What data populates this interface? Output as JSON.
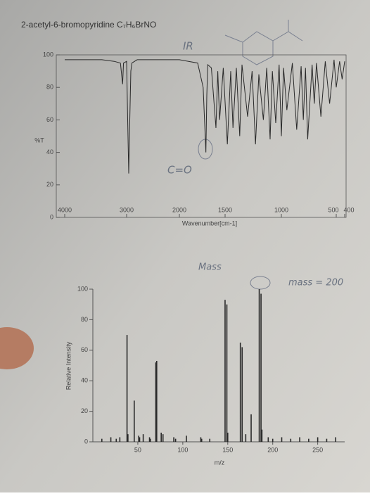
{
  "chart_data": [
    {
      "type": "line",
      "title": "2-acetyl-6-bromopyridine C₇H₆BrNO",
      "annotations": [
        "IR",
        "C=O"
      ],
      "x_label": "Wavenumber[cm-1]",
      "y_label": "%T",
      "xlim": [
        4000,
        400
      ],
      "ylim": [
        0,
        100
      ],
      "xticks": [
        4000,
        3000,
        2000,
        1500,
        1000,
        500,
        400
      ],
      "yticks": [
        0,
        20,
        40,
        60,
        80,
        100
      ],
      "color": "#2a2a2a",
      "x": [
        4000,
        3800,
        3600,
        3400,
        3200,
        3100,
        3065,
        3050,
        3000,
        2980,
        2960,
        2940,
        2920,
        2900,
        2800,
        2600,
        2400,
        2200,
        2000,
        1900,
        1800,
        1740,
        1710,
        1700,
        1690,
        1650,
        1600,
        1580,
        1560,
        1520,
        1480,
        1450,
        1430,
        1400,
        1370,
        1350,
        1300,
        1260,
        1230,
        1200,
        1160,
        1130,
        1100,
        1080,
        1050,
        1020,
        1000,
        980,
        950,
        900,
        860,
        820,
        800,
        780,
        760,
        720,
        700,
        680,
        640,
        600,
        560,
        520,
        500,
        460,
        430,
        400
      ],
      "values": [
        97,
        97,
        97,
        97,
        96,
        95,
        82,
        95,
        96,
        60,
        27,
        60,
        90,
        95,
        97,
        97,
        97,
        97,
        97,
        96,
        95,
        80,
        40,
        75,
        94,
        92,
        55,
        90,
        60,
        92,
        45,
        90,
        55,
        92,
        50,
        94,
        62,
        90,
        45,
        88,
        60,
        92,
        48,
        90,
        58,
        94,
        50,
        92,
        66,
        95,
        54,
        93,
        60,
        92,
        48,
        94,
        70,
        95,
        62,
        96,
        70,
        97,
        80,
        96,
        85,
        96
      ]
    },
    {
      "type": "bar",
      "annotations": [
        "Mass",
        "mass = 200"
      ],
      "x_label": "m/z",
      "y_label": "Relative Intensity",
      "xlim": [
        0,
        280
      ],
      "ylim": [
        0,
        100
      ],
      "xticks": [
        50,
        100,
        150,
        200,
        250
      ],
      "yticks": [
        0,
        20,
        40,
        60,
        80,
        100
      ],
      "color": "#2a2a2a",
      "x": [
        10,
        20,
        26,
        30,
        38,
        39,
        46,
        51,
        52,
        56,
        63,
        64,
        70,
        71,
        76,
        78,
        90,
        92,
        104,
        120,
        121,
        130,
        147,
        149,
        150,
        164,
        166,
        170,
        176,
        185,
        187,
        188,
        195,
        200,
        210,
        220,
        230,
        240,
        250,
        260,
        270
      ],
      "values": [
        2,
        3,
        2,
        3,
        70,
        5,
        27,
        4,
        3,
        5,
        3,
        2,
        52,
        53,
        6,
        5,
        3,
        2,
        4,
        3,
        2,
        2,
        93,
        90,
        6,
        65,
        62,
        5,
        18,
        100,
        97,
        8,
        3,
        2,
        3,
        2,
        3,
        2,
        3,
        2,
        3
      ]
    }
  ]
}
